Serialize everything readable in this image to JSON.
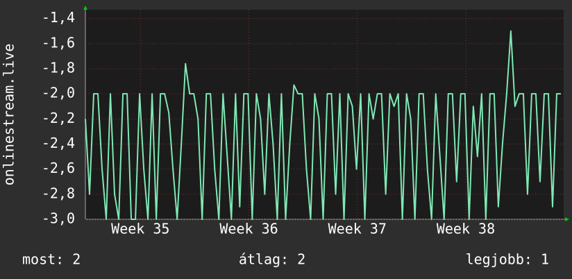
{
  "chart_data": {
    "type": "line",
    "y_label": "onlinestream.live",
    "series": [
      {
        "name": "onlinestream.live",
        "color": "#7fe8b4",
        "values": [
          -2.2,
          -2.8,
          -2.0,
          -2.0,
          -2.6,
          -3.0,
          -2.0,
          -2.8,
          -3.0,
          -2.0,
          -2.0,
          -3.0,
          -3.0,
          -2.0,
          -2.6,
          -3.0,
          -2.0,
          -3.0,
          -2.0,
          -2.0,
          -2.15,
          -2.6,
          -3.0,
          -2.4,
          -1.76,
          -2.0,
          -2.0,
          -2.2,
          -3.0,
          -2.0,
          -2.0,
          -2.6,
          -3.0,
          -2.0,
          -2.5,
          -3.0,
          -2.0,
          -2.9,
          -2.0,
          -2.0,
          -3.0,
          -2.0,
          -2.2,
          -2.8,
          -2.0,
          -2.4,
          -3.0,
          -2.0,
          -3.0,
          -2.4,
          -1.93,
          -2.0,
          -2.0,
          -2.6,
          -3.0,
          -2.0,
          -2.2,
          -3.0,
          -2.0,
          -2.0,
          -2.8,
          -2.0,
          -3.0,
          -2.0,
          -2.1,
          -2.6,
          -2.0,
          -3.0,
          -2.0,
          -2.2,
          -2.0,
          -2.0,
          -2.8,
          -2.0,
          -2.1,
          -2.0,
          -3.0,
          -2.0,
          -2.2,
          -3.0,
          -2.0,
          -2.0,
          -2.6,
          -3.0,
          -2.0,
          -2.5,
          -3.0,
          -2.0,
          -2.0,
          -2.7,
          -2.0,
          -2.0,
          -3.0,
          -2.1,
          -2.5,
          -2.0,
          -3.0,
          -2.0,
          -2.0,
          -2.9,
          -2.4,
          -2.0,
          -1.5,
          -2.1,
          -2.0,
          -2.0,
          -2.8,
          -2.0,
          -2.0,
          -2.7,
          -2.0,
          -2.0,
          -2.9,
          -2.0,
          -2.0
        ]
      }
    ],
    "xlim": [
      0,
      114
    ],
    "xticks": [
      {
        "value": 13.2,
        "label": "Week 35"
      },
      {
        "value": 39.2,
        "label": "Week 36"
      },
      {
        "value": 65.2,
        "label": "Week 37"
      },
      {
        "value": 91.2,
        "label": "Week 38"
      }
    ],
    "ylim": [
      -3.0,
      -1.33
    ],
    "yticks": [
      {
        "value": -3.0,
        "label": "-3,0"
      },
      {
        "value": -2.8,
        "label": "-2,8"
      },
      {
        "value": -2.6,
        "label": "-2,6"
      },
      {
        "value": -2.4,
        "label": "-2,4"
      },
      {
        "value": -2.2,
        "label": "-2,2"
      },
      {
        "value": -2.0,
        "label": "-2,0"
      },
      {
        "value": -1.8,
        "label": "-1,8"
      },
      {
        "value": -1.6,
        "label": "-1,6"
      },
      {
        "value": -1.4,
        "label": "-1,4"
      }
    ],
    "grid": true,
    "stats": {
      "current": "most: 2",
      "average": "átlag: 2",
      "best": "legjobb: 1"
    }
  }
}
